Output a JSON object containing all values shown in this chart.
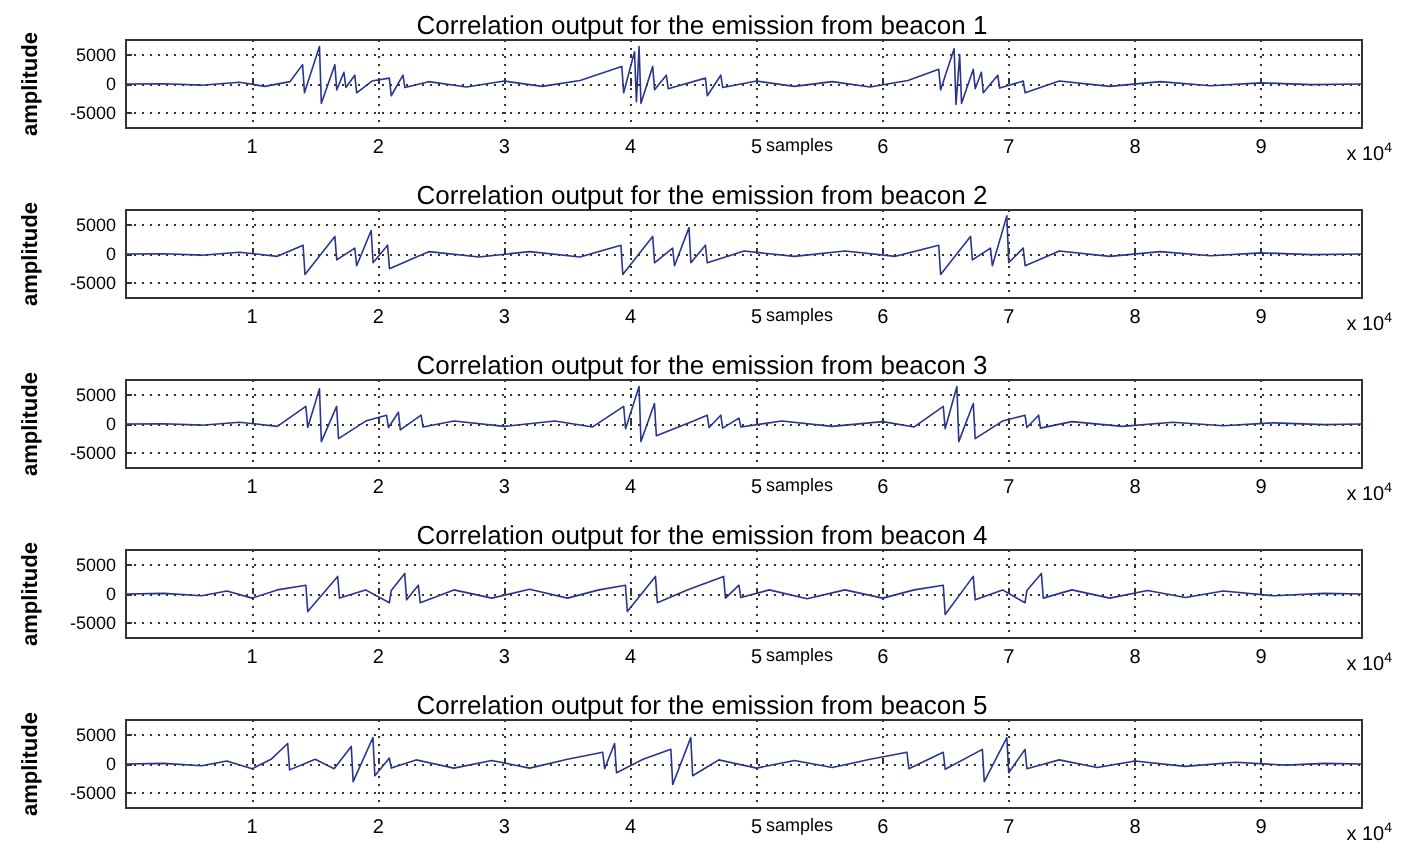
{
  "chart_data": [
    {
      "type": "line",
      "title": "Correlation output for the emission from beacon 1",
      "xlabel": "samples",
      "ylabel": "amplitude",
      "annotations": [
        "x 10$^{4}$"
      ],
      "color": "#28358c",
      "grid": true,
      "xlim": [
        0,
        9.8
      ],
      "ylim": [
        -7500,
        7500
      ],
      "yticks": [
        -5000,
        0,
        5000
      ],
      "xticks": [
        1,
        2,
        3,
        4,
        5,
        6,
        7,
        8,
        9
      ],
      "x": [
        0,
        0.3,
        0.6,
        0.9,
        1.1,
        1.3,
        1.4,
        1.415,
        1.534,
        1.549,
        1.656,
        1.671,
        1.728,
        1.743,
        1.814,
        1.829,
        1.95,
        2.088,
        2.103,
        2.196,
        2.211,
        2.4,
        2.7,
        3,
        3.3,
        3.6,
        3.931,
        3.946,
        4.032,
        4.047,
        4.068,
        4.083,
        4.176,
        4.191,
        4.284,
        4.299,
        4.594,
        4.609,
        4.716,
        4.731,
        5,
        5.3,
        5.6,
        5.9,
        6.2,
        6.444,
        6.459,
        6.566,
        6.581,
        6.61,
        6.625,
        6.718,
        6.733,
        6.782,
        6.797,
        6.912,
        6.927,
        7.114,
        7.129,
        7.4,
        7.8,
        8.2,
        8.6,
        9,
        9.4,
        9.8
      ],
      "values": [
        0,
        50,
        -200,
        300,
        -400,
        400,
        3300,
        -1500,
        6400,
        -3300,
        3300,
        -1000,
        2000,
        -600,
        1500,
        -1500,
        500,
        1000,
        -2000,
        1500,
        -600,
        400,
        -500,
        500,
        -400,
        600,
        3000,
        -1500,
        5500,
        -3000,
        6400,
        -3300,
        3000,
        -1000,
        1500,
        -800,
        1000,
        -2000,
        1500,
        -600,
        500,
        -400,
        400,
        -500,
        600,
        2500,
        -1000,
        6000,
        -3500,
        5000,
        -3300,
        2500,
        -800,
        2000,
        -1500,
        1500,
        -700,
        500,
        -1500,
        500,
        -400,
        400,
        -300,
        200,
        -100,
        0
      ]
    },
    {
      "type": "line",
      "title": "Correlation output for the emission from beacon 2",
      "xlabel": "samples",
      "ylabel": "amplitude",
      "annotations": [
        "x 10$^{4}$"
      ],
      "color": "#28358c",
      "grid": true,
      "xlim": [
        0,
        9.8
      ],
      "ylim": [
        -7500,
        7500
      ],
      "yticks": [
        -5000,
        0,
        5000
      ],
      "xticks": [
        1,
        2,
        3,
        4,
        5,
        6,
        7,
        8,
        9
      ],
      "x": [
        0,
        0.3,
        0.6,
        0.9,
        1.2,
        1.404,
        1.419,
        1.656,
        1.671,
        1.814,
        1.829,
        1.944,
        1.959,
        2.074,
        2.089,
        2.4,
        2.8,
        3.2,
        3.6,
        3.924,
        3.939,
        4.176,
        4.191,
        4.334,
        4.349,
        4.464,
        4.479,
        4.594,
        4.609,
        4.9,
        5.3,
        5.7,
        6.1,
        6.444,
        6.459,
        6.696,
        6.711,
        6.854,
        6.869,
        6.984,
        6.999,
        7.114,
        7.129,
        7.4,
        7.8,
        8.2,
        8.6,
        9,
        9.4,
        9.8
      ],
      "values": [
        0,
        50,
        -200,
        300,
        -400,
        1500,
        -3500,
        3000,
        -1000,
        1000,
        -2000,
        4000,
        -1500,
        1500,
        -2500,
        400,
        -500,
        400,
        -500,
        1500,
        -3500,
        3000,
        -1500,
        1000,
        -2000,
        4500,
        -1500,
        1500,
        -1500,
        500,
        -400,
        500,
        -400,
        1500,
        -3500,
        3000,
        -1000,
        1000,
        -2000,
        6500,
        -1500,
        1000,
        -2000,
        500,
        -400,
        400,
        -300,
        200,
        -100,
        0
      ]
    },
    {
      "type": "line",
      "title": "Correlation output for the emission from beacon 3",
      "xlabel": "samples",
      "ylabel": "amplitude",
      "annotations": [
        "x 10$^{4}$"
      ],
      "color": "#28358c",
      "grid": true,
      "xlim": [
        0,
        9.8
      ],
      "ylim": [
        -7500,
        7500
      ],
      "yticks": [
        -5000,
        0,
        5000
      ],
      "xticks": [
        1,
        2,
        3,
        4,
        5,
        6,
        7,
        8,
        9
      ],
      "x": [
        0,
        0.3,
        0.6,
        0.9,
        1.2,
        1.426,
        1.441,
        1.534,
        1.549,
        1.67,
        1.685,
        1.9,
        2.066,
        2.081,
        2.16,
        2.175,
        2.34,
        2.355,
        2.6,
        3,
        3.4,
        3.7,
        3.946,
        3.961,
        4.068,
        4.083,
        4.19,
        4.205,
        4.5,
        4.608,
        4.623,
        4.716,
        4.731,
        4.86,
        4.875,
        5.2,
        5.6,
        6,
        6.25,
        6.48,
        6.495,
        6.588,
        6.603,
        6.718,
        6.733,
        6.95,
        7.128,
        7.143,
        7.236,
        7.251,
        7.5,
        7.9,
        8.3,
        8.7,
        9.1,
        9.5,
        9.8
      ],
      "values": [
        0,
        50,
        -200,
        300,
        -400,
        3000,
        -600,
        6000,
        -3000,
        3000,
        -2500,
        500,
        1500,
        -600,
        2000,
        -1000,
        1500,
        -500,
        500,
        -400,
        500,
        -500,
        3000,
        -800,
        6400,
        -3000,
        3500,
        -2000,
        500,
        1500,
        -600,
        1500,
        -700,
        1000,
        -500,
        500,
        -400,
        400,
        -500,
        3000,
        -800,
        6400,
        -3000,
        3500,
        -2500,
        500,
        1500,
        -600,
        1500,
        -700,
        400,
        -400,
        300,
        -300,
        200,
        -100,
        0
      ]
    },
    {
      "type": "line",
      "title": "Correlation output for the emission from beacon 4",
      "xlabel": "samples",
      "ylabel": "amplitude",
      "annotations": [
        "x 10$^{4}$"
      ],
      "color": "#28358c",
      "grid": true,
      "xlim": [
        0,
        9.8
      ],
      "ylim": [
        -7500,
        7500
      ],
      "yticks": [
        -5000,
        0,
        5000
      ],
      "xticks": [
        1,
        2,
        3,
        4,
        5,
        6,
        7,
        8,
        9
      ],
      "x": [
        0,
        0.3,
        0.6,
        0.8,
        1,
        1.2,
        1.426,
        1.441,
        1.678,
        1.693,
        1.9,
        2.088,
        2.103,
        2.21,
        2.225,
        2.318,
        2.333,
        2.6,
        2.9,
        3.2,
        3.5,
        3.75,
        3.96,
        3.975,
        4.198,
        4.213,
        4.45,
        4.738,
        4.753,
        4.86,
        4.875,
        5.1,
        5.4,
        5.7,
        6,
        6.25,
        6.48,
        6.495,
        6.718,
        6.733,
        6.95,
        7.128,
        7.143,
        7.258,
        7.273,
        7.5,
        7.8,
        8.1,
        8.4,
        8.7,
        9.1,
        9.5,
        9.8
      ],
      "values": [
        0,
        100,
        -300,
        500,
        -700,
        700,
        1500,
        -3000,
        3000,
        -700,
        700,
        -1500,
        600,
        3500,
        -1000,
        1500,
        -1500,
        700,
        -700,
        800,
        -700,
        700,
        1500,
        -3000,
        3000,
        -1500,
        700,
        3000,
        -700,
        1500,
        -600,
        700,
        -800,
        700,
        -700,
        700,
        1500,
        -3500,
        3000,
        -1000,
        700,
        -1500,
        600,
        3500,
        -700,
        700,
        -700,
        600,
        -600,
        500,
        -300,
        100,
        0
      ]
    },
    {
      "type": "line",
      "title": "Correlation output for the emission from beacon 5",
      "xlabel": "samples",
      "ylabel": "amplitude",
      "annotations": [
        "x 10$^{4}$"
      ],
      "color": "#28358c",
      "grid": true,
      "xlim": [
        0,
        9.8
      ],
      "ylim": [
        -7500,
        7500
      ],
      "yticks": [
        -5000,
        0,
        5000
      ],
      "xticks": [
        1,
        2,
        3,
        4,
        5,
        6,
        7,
        8,
        9
      ],
      "x": [
        0,
        0.3,
        0.6,
        0.8,
        1,
        1.15,
        1.282,
        1.297,
        1.5,
        1.65,
        1.786,
        1.801,
        1.958,
        1.973,
        2.088,
        2.103,
        2.3,
        2.6,
        2.9,
        3.2,
        3.5,
        3.78,
        3.795,
        3.874,
        3.889,
        4.1,
        4.32,
        4.335,
        4.478,
        4.493,
        4.7,
        5,
        5.3,
        5.6,
        5.9,
        6.192,
        6.207,
        6.48,
        6.495,
        6.79,
        6.805,
        6.984,
        6.999,
        7.128,
        7.143,
        7.4,
        7.7,
        8,
        8.4,
        8.8,
        9.2,
        9.5,
        9.8
      ],
      "values": [
        0,
        100,
        -300,
        500,
        -800,
        800,
        3500,
        -1000,
        800,
        -800,
        3000,
        -3000,
        4500,
        -2000,
        1000,
        -700,
        700,
        -700,
        600,
        -700,
        800,
        2000,
        -800,
        3500,
        -1500,
        800,
        2500,
        -3500,
        4500,
        -2000,
        700,
        -700,
        600,
        -600,
        800,
        2000,
        -800,
        2000,
        -900,
        2500,
        -3000,
        4500,
        -1500,
        2500,
        -800,
        700,
        -600,
        500,
        -400,
        300,
        -200,
        100,
        0
      ]
    }
  ]
}
